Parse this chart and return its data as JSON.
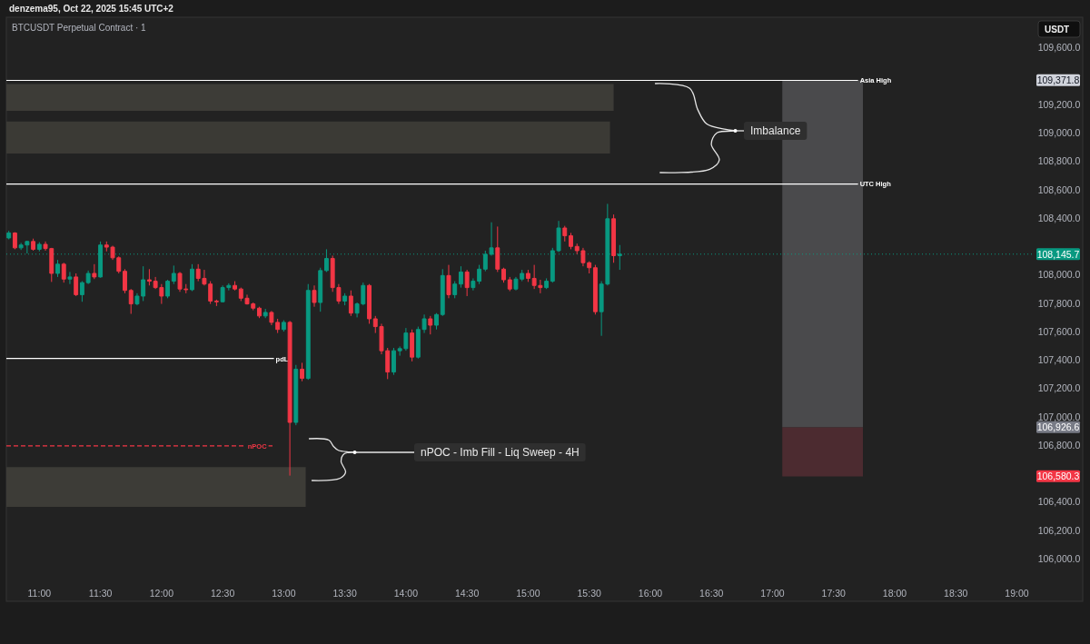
{
  "chart_data": {
    "type": "candlestick",
    "title": "BTCUSDT Perpetual Contract · 1",
    "ylabel": "USDT",
    "annotations": [
      "denzema95, Oct 22, 2025 15:45 UTC+2",
      "Imbalance",
      "nPOC - Imb Fill - Liq Sweep - 4H",
      "109,371.8",
      "106,926.6",
      "106,580.3"
    ],
    "x": [
      10.75,
      10.8,
      10.85,
      10.9,
      10.95,
      11,
      11.05,
      11.1,
      11.15,
      11.2,
      11.25,
      11.3,
      11.35,
      11.4,
      11.45,
      11.5,
      11.55,
      11.6,
      11.65,
      11.7,
      11.75,
      11.8,
      11.85,
      11.9,
      11.95,
      12,
      12.05,
      12.1,
      12.15,
      12.2,
      12.25,
      12.3,
      12.35,
      12.4,
      12.45,
      12.5,
      12.55,
      12.6,
      12.65,
      12.7,
      12.75,
      12.8,
      12.85,
      12.9,
      12.95,
      13,
      13.05,
      13.1,
      13.15,
      13.2,
      13.25,
      13.3,
      13.35,
      13.4,
      13.45,
      13.5,
      13.55,
      13.6,
      13.65,
      13.7,
      13.75,
      13.8,
      13.85,
      13.9,
      13.95,
      14,
      14.05,
      14.1,
      14.15,
      14.2,
      14.25,
      14.3,
      14.35,
      14.4,
      14.45,
      14.5,
      14.55,
      14.6,
      14.65,
      14.7,
      14.75,
      14.8,
      14.85,
      14.9,
      14.95,
      15,
      15.05,
      15.1,
      15.15,
      15.2,
      15.25,
      15.3,
      15.35,
      15.4,
      15.45,
      15.5,
      15.55,
      15.6,
      15.65,
      15.7,
      15.75
    ],
    "ohlc": [
      [
        108260,
        108310,
        108250,
        108295
      ],
      [
        108295,
        108300,
        108180,
        108190
      ],
      [
        108190,
        108225,
        108175,
        108210
      ],
      [
        108210,
        108240,
        108150,
        108235
      ],
      [
        108235,
        108255,
        108170,
        108180
      ],
      [
        108180,
        108230,
        108165,
        108215
      ],
      [
        108215,
        108235,
        108170,
        108185
      ],
      [
        108185,
        108190,
        107950,
        108010
      ],
      [
        108010,
        108105,
        107985,
        108075
      ],
      [
        108075,
        108085,
        107945,
        107970
      ],
      [
        107970,
        108020,
        107935,
        107985
      ],
      [
        107985,
        108010,
        107850,
        107860
      ],
      [
        107860,
        107955,
        107810,
        107945
      ],
      [
        107945,
        108030,
        107935,
        108010
      ],
      [
        108010,
        108075,
        107970,
        107985
      ],
      [
        107985,
        108235,
        107980,
        108210
      ],
      [
        108210,
        108235,
        108165,
        108195
      ],
      [
        108195,
        108205,
        108105,
        108120
      ],
      [
        108120,
        108130,
        108010,
        108025
      ],
      [
        108025,
        108040,
        107870,
        107890
      ],
      [
        107890,
        107900,
        107725,
        107795
      ],
      [
        107795,
        107870,
        107785,
        107850
      ],
      [
        107850,
        108060,
        107815,
        107965
      ],
      [
        107965,
        108040,
        107925,
        107955
      ],
      [
        107955,
        107985,
        107900,
        107910
      ],
      [
        107910,
        107935,
        107795,
        107850
      ],
      [
        107850,
        107965,
        107835,
        107955
      ],
      [
        107955,
        108065,
        107935,
        108010
      ],
      [
        108010,
        108020,
        107880,
        107900
      ],
      [
        107900,
        107935,
        107870,
        107895
      ],
      [
        107895,
        108075,
        107885,
        108040
      ],
      [
        108040,
        108075,
        107955,
        107975
      ],
      [
        107975,
        108035,
        107925,
        107935
      ],
      [
        107935,
        107955,
        107795,
        107815
      ],
      [
        107815,
        107825,
        107780,
        107810
      ],
      [
        107810,
        107925,
        107805,
        107910
      ],
      [
        107910,
        107940,
        107890,
        107925
      ],
      [
        107925,
        107955,
        107890,
        107900
      ],
      [
        107900,
        107910,
        107815,
        107835
      ],
      [
        107835,
        107860,
        107790,
        107795
      ],
      [
        107795,
        107805,
        107750,
        107765
      ],
      [
        107765,
        107775,
        107695,
        107710
      ],
      [
        107710,
        107760,
        107695,
        107735
      ],
      [
        107735,
        107745,
        107645,
        107665
      ],
      [
        107665,
        107690,
        107590,
        107615
      ],
      [
        107615,
        107680,
        107600,
        107665
      ],
      [
        107665,
        107675,
        106585,
        106960
      ],
      [
        106960,
        107365,
        106940,
        107335
      ],
      [
        107335,
        107380,
        107250,
        107270
      ],
      [
        107270,
        107935,
        107260,
        107890
      ],
      [
        107890,
        107925,
        107775,
        107805
      ],
      [
        107805,
        108050,
        107740,
        108030
      ],
      [
        108030,
        108180,
        108020,
        108115
      ],
      [
        108115,
        108135,
        107880,
        107910
      ],
      [
        107910,
        107935,
        107795,
        107815
      ],
      [
        107815,
        107870,
        107785,
        107850
      ],
      [
        107850,
        107890,
        107710,
        107730
      ],
      [
        107730,
        107805,
        107700,
        107795
      ],
      [
        107795,
        107945,
        107785,
        107925
      ],
      [
        107925,
        107935,
        107655,
        107690
      ],
      [
        107690,
        107710,
        107590,
        107635
      ],
      [
        107635,
        107655,
        107440,
        107465
      ],
      [
        107465,
        107485,
        107265,
        107315
      ],
      [
        107315,
        107485,
        107295,
        107465
      ],
      [
        107465,
        107495,
        107430,
        107480
      ],
      [
        107480,
        107625,
        107465,
        107590
      ],
      [
        107590,
        107615,
        107390,
        107420
      ],
      [
        107420,
        107635,
        107410,
        107615
      ],
      [
        107615,
        107720,
        107590,
        107690
      ],
      [
        107690,
        107710,
        107580,
        107645
      ],
      [
        107645,
        107730,
        107615,
        107720
      ],
      [
        107720,
        108040,
        107710,
        107995
      ],
      [
        107995,
        108070,
        107835,
        107860
      ],
      [
        107860,
        107955,
        107835,
        107935
      ],
      [
        107935,
        108060,
        107910,
        108020
      ],
      [
        108020,
        108035,
        107850,
        107910
      ],
      [
        107910,
        107975,
        107890,
        107955
      ],
      [
        107955,
        108070,
        107935,
        108040
      ],
      [
        108040,
        108170,
        108025,
        108145
      ],
      [
        108145,
        108370,
        108135,
        108190
      ],
      [
        108190,
        108340,
        108020,
        108040
      ],
      [
        108040,
        108050,
        107945,
        107965
      ],
      [
        107965,
        107985,
        107885,
        107900
      ],
      [
        107900,
        107985,
        107890,
        107970
      ],
      [
        107970,
        108035,
        107955,
        108010
      ],
      [
        108010,
        108035,
        107950,
        107975
      ],
      [
        107975,
        108070,
        107900,
        107925
      ],
      [
        107925,
        107965,
        107870,
        107910
      ],
      [
        107910,
        107975,
        107900,
        107955
      ],
      [
        107955,
        108190,
        107945,
        108170
      ],
      [
        108170,
        108380,
        108160,
        108330
      ],
      [
        108330,
        108345,
        108235,
        108275
      ],
      [
        108275,
        108295,
        108180,
        108200
      ],
      [
        108200,
        108220,
        108145,
        108170
      ],
      [
        108170,
        108190,
        108060,
        108085
      ],
      [
        108085,
        108095,
        108010,
        108050
      ],
      [
        108050,
        108070,
        107720,
        107740
      ],
      [
        107740,
        107955,
        107570,
        107935
      ],
      [
        107935,
        108500,
        107925,
        108395
      ],
      [
        108395,
        108425,
        108085,
        108135
      ],
      [
        108135,
        108210,
        108035,
        108145.7
      ]
    ],
    "colors": [
      "#089981",
      "#f23645",
      "#089981",
      "#089981",
      "#f23645",
      "#089981",
      "#f23645",
      "#f23645",
      "#089981",
      "#f23645",
      "#089981",
      "#f23645",
      "#089981",
      "#089981",
      "#f23645",
      "#089981",
      "#f23645",
      "#f23645",
      "#f23645",
      "#f23645",
      "#f23645",
      "#089981",
      "#089981",
      "#f23645",
      "#f23645",
      "#f23645",
      "#089981",
      "#089981",
      "#f23645",
      "#f23645",
      "#089981",
      "#f23645",
      "#f23645",
      "#f23645",
      "#f23645",
      "#089981",
      "#089981",
      "#f23645",
      "#f23645",
      "#f23645",
      "#f23645",
      "#f23645",
      "#089981",
      "#f23645",
      "#f23645",
      "#089981",
      "#f23645",
      "#089981",
      "#f23645",
      "#089981",
      "#f23645",
      "#089981",
      "#089981",
      "#f23645",
      "#f23645",
      "#089981",
      "#f23645",
      "#089981",
      "#089981",
      "#f23645",
      "#f23645",
      "#f23645",
      "#f23645",
      "#089981",
      "#089981",
      "#089981",
      "#f23645",
      "#089981",
      "#089981",
      "#f23645",
      "#089981",
      "#089981",
      "#f23645",
      "#089981",
      "#089981",
      "#f23645",
      "#089981",
      "#089981",
      "#089981",
      "#089981",
      "#f23645",
      "#f23645",
      "#f23645",
      "#089981",
      "#089981",
      "#f23645",
      "#f23645",
      "#f23645",
      "#089981",
      "#089981",
      "#089981",
      "#f23645",
      "#f23645",
      "#f23645",
      "#f23645",
      "#f23645",
      "#f23645",
      "#089981",
      "#089981",
      "#f23645",
      "#089981"
    ],
    "series": [
      {
        "type": "area",
        "x": [
          10.73,
          15.7
        ],
        "values": [
          null,
          null
        ],
        "lower": [
          109155,
          109155
        ],
        "upper": [
          109345,
          109345
        ],
        "color": "#3d3c37"
      },
      {
        "type": "area",
        "x": [
          10.73,
          15.67
        ],
        "values": [
          null,
          null
        ],
        "lower": [
          108855,
          108855
        ],
        "upper": [
          109080,
          109080
        ],
        "color": "#3b3a35"
      },
      {
        "type": "area",
        "x": [
          10.73,
          13.18
        ],
        "values": [
          null,
          null
        ],
        "lower": [
          106365,
          106365
        ],
        "upper": [
          106645,
          106645
        ],
        "color": "#3d3c37"
      },
      {
        "type": "area",
        "x": [
          17.08,
          17.74
        ],
        "values": [
          null,
          null
        ],
        "lower": [
          106925,
          106925
        ],
        "upper": [
          109370,
          109370
        ],
        "color": "#4a4a4c"
      },
      {
        "type": "area",
        "x": [
          17.08,
          17.74
        ],
        "values": [
          null,
          null
        ],
        "lower": [
          106580,
          106580
        ],
        "upper": [
          106925,
          106925
        ],
        "color": "#4c2b30"
      },
      {
        "type": "line",
        "name": "Asia High",
        "x": [
          10.73,
          17.7
        ],
        "values": [
          109370,
          109370
        ],
        "color": "#ffffff"
      },
      {
        "type": "line",
        "name": "UTC High",
        "x": [
          10.73,
          17.7
        ],
        "values": [
          108640,
          108640
        ],
        "color": "#ffffff"
      },
      {
        "type": "line",
        "name": "pdL",
        "x": [
          10.73,
          12.92
        ],
        "values": [
          107410,
          107410
        ],
        "color": "#ffffff"
      },
      {
        "type": "line",
        "name": "nPOC",
        "x": [
          10.73,
          12.92
        ],
        "values": [
          106795,
          106795
        ],
        "color": "#f23645",
        "line_style": "dashed"
      }
    ],
    "xlim": [
      10.73,
      19.13
    ],
    "xticks": [
      {
        "value": 11,
        "label": "11:00"
      },
      {
        "value": 11.5,
        "label": "11:30"
      },
      {
        "value": 12,
        "label": "12:00"
      },
      {
        "value": 12.5,
        "label": "12:30"
      },
      {
        "value": 13,
        "label": "13:00"
      },
      {
        "value": 13.5,
        "label": "13:30"
      },
      {
        "value": 14,
        "label": "14:00"
      },
      {
        "value": 14.5,
        "label": "14:30"
      },
      {
        "value": 15,
        "label": "15:00"
      },
      {
        "value": 15.5,
        "label": "15:30"
      },
      {
        "value": 16,
        "label": "16:00"
      },
      {
        "value": 16.5,
        "label": "16:30"
      },
      {
        "value": 17,
        "label": "17:00"
      },
      {
        "value": 17.5,
        "label": "17:30"
      },
      {
        "value": 18,
        "label": "18:00"
      },
      {
        "value": 18.5,
        "label": "18:30"
      },
      {
        "value": 19,
        "label": "19:00"
      }
    ],
    "ylim": [
      106000,
      109815
    ],
    "yticks": [
      {
        "value": 106000,
        "label": "106,000.0"
      },
      {
        "value": 106200,
        "label": "106,200.0"
      },
      {
        "value": 106400,
        "label": "106,400.0"
      },
      {
        "value": 106800,
        "label": "106,800.0"
      },
      {
        "value": 107000,
        "label": "107,000.0"
      },
      {
        "value": 107200,
        "label": "107,200.0"
      },
      {
        "value": 107400,
        "label": "107,400.0"
      },
      {
        "value": 107600,
        "label": "107,600.0"
      },
      {
        "value": 107800,
        "label": "107,800.0"
      },
      {
        "value": 108000,
        "label": "108,000.0"
      },
      {
        "value": 108400,
        "label": "108,400.0"
      },
      {
        "value": 108600,
        "label": "108,600.0"
      },
      {
        "value": 108800,
        "label": "108,800.0"
      },
      {
        "value": 109000,
        "label": "109,000.0"
      },
      {
        "value": 109200,
        "label": "109,200.0"
      },
      {
        "value": 109600,
        "label": "109,600.0"
      }
    ],
    "ref_lines": [
      {
        "axis": "y",
        "value": 108145.7,
        "label": "108,145.7",
        "color": "#089981",
        "line_style": "dotted"
      }
    ]
  }
}
